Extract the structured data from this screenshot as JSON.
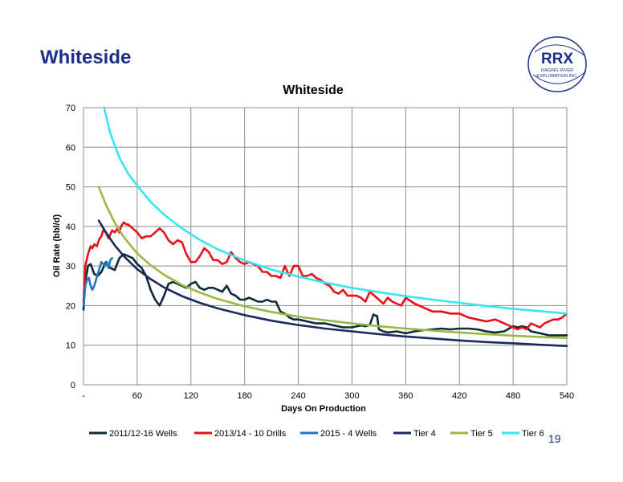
{
  "page": {
    "title": "Whiteside",
    "page_number": "19"
  },
  "logo": {
    "name": "rrx-logo-icon",
    "main": "RRX",
    "line1": "RAGING RIVER",
    "line2": "EXPLORATION INC.",
    "color": "#1b2f8a"
  },
  "chart_data": {
    "type": "line",
    "title": "Whiteside",
    "xlabel": "Days On Production",
    "ylabel": "Oil Rate (bbl/d)",
    "xlim": [
      0,
      540
    ],
    "ylim": [
      0,
      70
    ],
    "xtick_labels": [
      "-",
      "60",
      "120",
      "180",
      "240",
      "300",
      "360",
      "420",
      "480",
      "540"
    ],
    "xtick_values": [
      0,
      60,
      120,
      180,
      240,
      300,
      360,
      420,
      480,
      540
    ],
    "yticks": [
      0,
      10,
      20,
      30,
      40,
      50,
      60,
      70
    ],
    "grid": true,
    "legend_position": "bottom",
    "series": [
      {
        "name": "2011/12-16 Wells",
        "color": "#0d2b36",
        "x": [
          0,
          2,
          5,
          8,
          12,
          16,
          20,
          25,
          30,
          35,
          40,
          45,
          50,
          55,
          60,
          65,
          70,
          75,
          80,
          85,
          90,
          95,
          100,
          105,
          110,
          115,
          120,
          125,
          130,
          135,
          140,
          145,
          150,
          155,
          160,
          165,
          170,
          175,
          180,
          185,
          190,
          195,
          200,
          205,
          210,
          215,
          220,
          225,
          230,
          235,
          240,
          250,
          260,
          270,
          280,
          290,
          300,
          310,
          315,
          320,
          324,
          326,
          328,
          330,
          335,
          340,
          350,
          360,
          370,
          380,
          390,
          400,
          410,
          420,
          430,
          440,
          450,
          460,
          470,
          480,
          485,
          490,
          495,
          500,
          510,
          520,
          530,
          540
        ],
        "y": [
          19,
          26,
          30,
          30.5,
          28,
          27.5,
          28.5,
          31,
          29.5,
          29,
          32,
          33,
          32.5,
          32,
          30.5,
          29.5,
          27.5,
          24,
          21.5,
          20,
          22.5,
          25.5,
          26,
          25.5,
          25,
          24.5,
          25.5,
          26,
          24.5,
          24,
          24.5,
          24.5,
          24,
          23.5,
          25,
          23,
          22.5,
          21.5,
          21.5,
          22,
          21.5,
          21,
          21,
          21.5,
          21,
          21,
          18.5,
          18,
          17,
          16.5,
          16.5,
          16,
          15.5,
          15.5,
          15,
          14.5,
          14.5,
          15,
          14.8,
          15.2,
          17.8,
          17.5,
          17.4,
          14,
          13.5,
          13.2,
          13.5,
          13,
          13.5,
          13.8,
          14,
          14.2,
          14,
          14.2,
          14.2,
          14,
          13.5,
          13.2,
          13.5,
          14.8,
          14.5,
          14.8,
          14.5,
          13.5,
          13,
          12.5,
          12.5,
          12.5
        ]
      },
      {
        "name": "2013/14 - 10 Drills",
        "color": "#e8111a",
        "x": [
          0,
          2,
          5,
          8,
          10,
          12,
          15,
          18,
          20,
          22,
          25,
          28,
          30,
          32,
          35,
          38,
          40,
          42,
          45,
          48,
          50,
          55,
          60,
          65,
          70,
          75,
          80,
          85,
          90,
          95,
          100,
          105,
          110,
          115,
          120,
          125,
          130,
          135,
          140,
          145,
          150,
          155,
          160,
          165,
          170,
          175,
          180,
          185,
          190,
          195,
          200,
          205,
          210,
          215,
          220,
          225,
          230,
          235,
          240,
          245,
          250,
          255,
          260,
          265,
          270,
          275,
          280,
          285,
          290,
          295,
          300,
          305,
          310,
          315,
          320,
          325,
          330,
          335,
          340,
          345,
          350,
          355,
          360,
          370,
          380,
          390,
          400,
          410,
          420,
          430,
          440,
          450,
          460,
          470,
          480,
          485,
          490,
          495,
          500,
          505,
          510,
          515,
          520,
          525,
          530,
          535,
          540
        ],
        "y": [
          21,
          30,
          33,
          35,
          34.5,
          35.5,
          35,
          37,
          37.5,
          39,
          38.5,
          37,
          38,
          39,
          38.5,
          39.5,
          38.5,
          40,
          41,
          40.5,
          40.5,
          39.5,
          38.5,
          37,
          37.5,
          37.5,
          38.5,
          39.5,
          38.5,
          36.5,
          35.5,
          36.5,
          36,
          33,
          31,
          31,
          32.5,
          34.5,
          33.5,
          31.5,
          31.5,
          30.5,
          31,
          33.5,
          32,
          31,
          30.5,
          31,
          30.5,
          30,
          28.5,
          28.5,
          27.5,
          27.5,
          27,
          30,
          27.5,
          30,
          30,
          27.5,
          27.5,
          28,
          27,
          26.5,
          25.5,
          25,
          23.5,
          23,
          24,
          22.5,
          22.5,
          22.5,
          22,
          21,
          23.5,
          22.5,
          21.5,
          20.5,
          22,
          21,
          20.5,
          20,
          22,
          20.5,
          19.5,
          18.5,
          18.5,
          18,
          18,
          17,
          16.5,
          16,
          16.5,
          15.5,
          14.5,
          14,
          14.5,
          14,
          15.5,
          15,
          14.5,
          15.5,
          16,
          16.5,
          16.5,
          17,
          18
        ]
      },
      {
        "name": "2015 - 4 Wells",
        "color": "#1f78c1",
        "x": [
          0,
          2,
          4,
          6,
          8,
          10,
          12,
          14,
          16,
          18,
          20,
          22,
          24,
          26,
          28,
          30,
          32
        ],
        "y": [
          20,
          25,
          26.5,
          27,
          25,
          24,
          25,
          26.5,
          28,
          29.5,
          31,
          30.5,
          30,
          31,
          29.5,
          31.5,
          32
        ]
      },
      {
        "name": "Tier 4",
        "color": "#1b2a5e",
        "x": [
          17,
          25,
          35,
          45,
          60,
          75,
          90,
          110,
          130,
          150,
          180,
          210,
          240,
          270,
          300,
          330,
          360,
          390,
          420,
          450,
          480,
          510,
          540
        ],
        "y": [
          41.5,
          38.5,
          35.2,
          32.5,
          29.2,
          26.7,
          24.6,
          22.4,
          20.7,
          19.3,
          17.6,
          16.2,
          15.1,
          14.2,
          13.5,
          12.8,
          12.2,
          11.7,
          11.2,
          10.8,
          10.5,
          10.1,
          9.8
        ]
      },
      {
        "name": "Tier 5",
        "color": "#9ab843",
        "x": [
          17,
          25,
          35,
          45,
          60,
          75,
          90,
          110,
          130,
          150,
          180,
          210,
          240,
          270,
          300,
          330,
          360,
          390,
          420,
          450,
          480,
          510,
          540
        ],
        "y": [
          50,
          45.5,
          40.9,
          37.3,
          33.2,
          30.2,
          27.8,
          25.2,
          23.3,
          21.7,
          19.8,
          18.4,
          17.2,
          16.3,
          15.5,
          14.8,
          14.2,
          13.7,
          13.2,
          12.8,
          12.4,
          12.1,
          11.8
        ]
      },
      {
        "name": "Tier 6",
        "color": "#38e6ef",
        "x": [
          23,
          30,
          40,
          50,
          60,
          75,
          90,
          110,
          130,
          150,
          180,
          210,
          240,
          270,
          300,
          330,
          360,
          390,
          420,
          450,
          480,
          510,
          540
        ],
        "y": [
          70,
          63.5,
          57.4,
          53.3,
          50.3,
          46.2,
          43,
          39.5,
          36.6,
          34.2,
          31.4,
          29.1,
          27.3,
          25.8,
          24.5,
          23.4,
          22.4,
          21.5,
          20.7,
          19.9,
          19.2,
          18.6,
          18
        ]
      }
    ]
  }
}
